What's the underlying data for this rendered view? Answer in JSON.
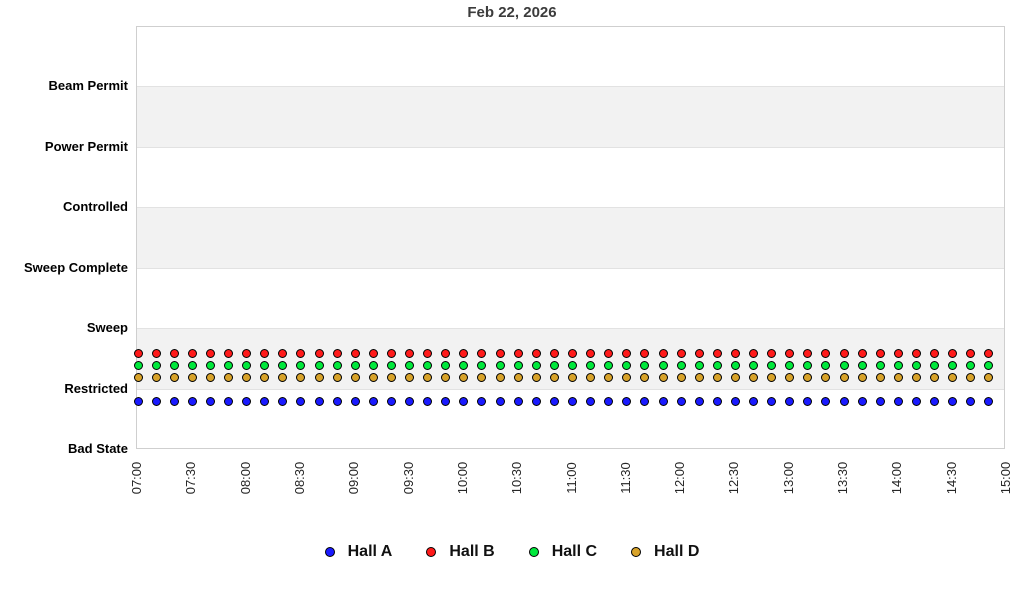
{
  "chart_data": {
    "type": "scatter",
    "title": "Feb 22, 2026",
    "y_categories": [
      "Bad State",
      "Restricted",
      "Sweep",
      "Sweep Complete",
      "Controlled",
      "Power Permit",
      "Beam Permit"
    ],
    "x_tick_labels": [
      "07:00",
      "07:30",
      "08:00",
      "08:30",
      "09:00",
      "09:30",
      "10:00",
      "10:30",
      "11:00",
      "11:30",
      "12:00",
      "12:30",
      "13:00",
      "13:30",
      "14:00",
      "14:30",
      "15:00"
    ],
    "x_axis_start": "07:00",
    "x_axis_end": "15:00",
    "points_start": "07:00",
    "points_end": "14:50",
    "points_interval_minutes": 10,
    "points_count": 48,
    "series": [
      {
        "name": "Hall A",
        "color": "#1a1aff",
        "state": "Restricted",
        "display_offset_units": -0.2
      },
      {
        "name": "Hall B",
        "color": "#ff1a1a",
        "state": "Restricted",
        "display_offset_units": 0.6
      },
      {
        "name": "Hall C",
        "color": "#00e83c",
        "state": "Restricted",
        "display_offset_units": 0.4
      },
      {
        "name": "Hall D",
        "color": "#d8a32a",
        "state": "Restricted",
        "display_offset_units": 0.2
      }
    ],
    "style": {
      "band_shaded_fill": "#f2f2f2",
      "band_plain_fill": "#ffffff",
      "band_line_color": "#e2e2e2",
      "plot_border_color": "#cfcfcf",
      "legend_position": "bottom-center",
      "grid": "horizontal-bands"
    }
  }
}
